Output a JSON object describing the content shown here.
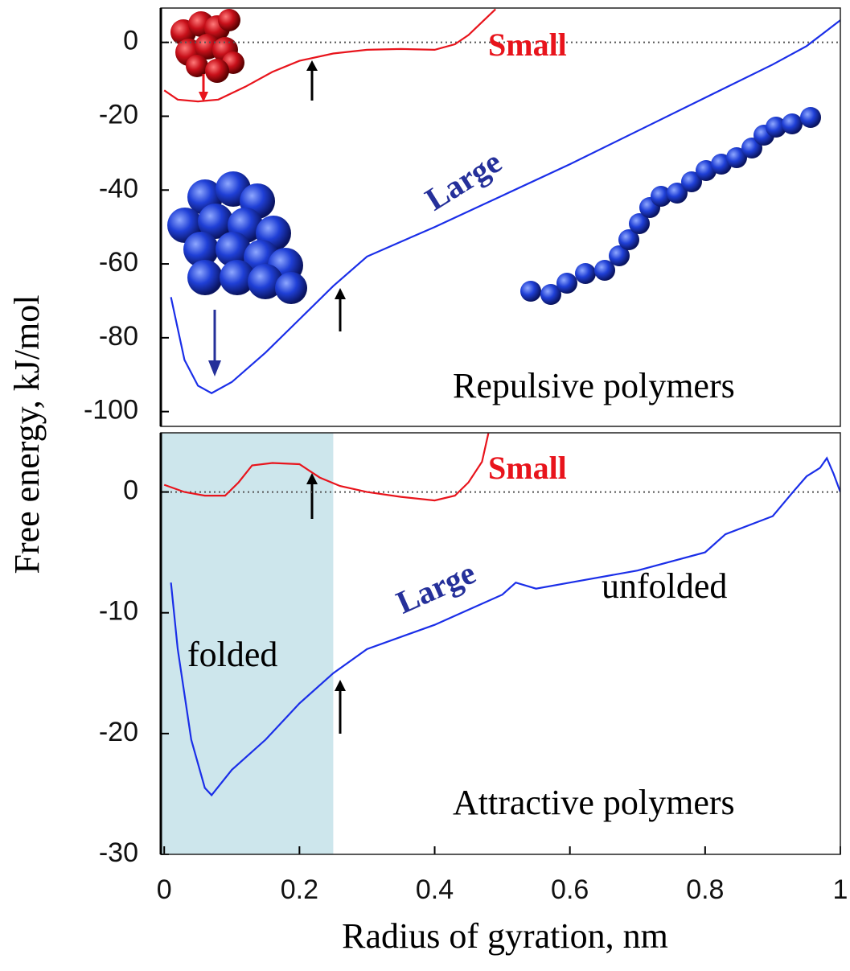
{
  "chart_data": [
    {
      "type": "line",
      "ylabel": "Free energy, kJ/mol",
      "xlim": [
        -0.005,
        1
      ],
      "ylim": [
        -104,
        9.3
      ],
      "yticks": [
        0,
        -20,
        -40,
        -60,
        -80,
        -100
      ],
      "zero_line": true,
      "series": [
        {
          "name": "Small",
          "color": "#e8141c",
          "x": [
            0,
            0.02,
            0.05,
            0.08,
            0.12,
            0.16,
            0.2,
            0.25,
            0.3,
            0.35,
            0.4,
            0.43,
            0.45,
            0.47,
            0.49
          ],
          "values": [
            -13,
            -15.5,
            -16,
            -15.5,
            -12,
            -8,
            -5,
            -3,
            -2,
            -1.8,
            -2,
            -0.5,
            2,
            5.5,
            9
          ]
        },
        {
          "name": "Large",
          "color": "#1a2ee8",
          "x": [
            0.01,
            0.03,
            0.05,
            0.07,
            0.1,
            0.15,
            0.2,
            0.25,
            0.3,
            0.35,
            0.4,
            0.5,
            0.6,
            0.7,
            0.8,
            0.9,
            0.95,
            1
          ],
          "values": [
            -69,
            -86,
            -93,
            -95,
            -92,
            -84,
            -75,
            -66,
            -58,
            -54,
            -50,
            -41.5,
            -33,
            -24,
            -15,
            -6,
            -1,
            6
          ]
        }
      ],
      "annotations": [
        "Repulsive polymers"
      ]
    },
    {
      "type": "line",
      "xlabel": "Radius of gyration, nm",
      "xlim": [
        -0.005,
        1
      ],
      "ylim": [
        -30,
        4.9
      ],
      "xticks": [
        0,
        0.2,
        0.4,
        0.6,
        0.8,
        1
      ],
      "yticks": [
        0,
        -10,
        -20,
        -30
      ],
      "zero_line": true,
      "shaded_xrange": [
        -0.005,
        0.25
      ],
      "shade_color": "#cde6ec",
      "series": [
        {
          "name": "Small",
          "color": "#e8141c",
          "x": [
            0,
            0.03,
            0.06,
            0.09,
            0.11,
            0.13,
            0.16,
            0.2,
            0.23,
            0.26,
            0.3,
            0.35,
            0.4,
            0.43,
            0.45,
            0.47,
            0.48
          ],
          "values": [
            0.6,
            0,
            -0.3,
            -0.3,
            0.8,
            2.2,
            2.4,
            2.3,
            1.2,
            0.5,
            0,
            -0.4,
            -0.7,
            -0.3,
            0.8,
            2.5,
            5
          ]
        },
        {
          "name": "Large",
          "color": "#1a2ee8",
          "x": [
            0.01,
            0.02,
            0.04,
            0.06,
            0.07,
            0.1,
            0.15,
            0.2,
            0.25,
            0.3,
            0.4,
            0.5,
            0.52,
            0.55,
            0.6,
            0.7,
            0.8,
            0.83,
            0.9,
            0.93,
            0.95,
            0.97,
            0.98,
            0.99,
            1
          ],
          "values": [
            -7.5,
            -13,
            -20.5,
            -24.5,
            -25.1,
            -23,
            -20.5,
            -17.5,
            -15,
            -13,
            -11,
            -8.5,
            -7.5,
            -8,
            -7.5,
            -6.5,
            -5,
            -3.5,
            -2,
            0,
            1.3,
            2,
            2.8,
            1.5,
            0
          ]
        }
      ],
      "annotations": [
        "folded",
        "unfolded",
        "Attractive polymers"
      ]
    }
  ]
}
